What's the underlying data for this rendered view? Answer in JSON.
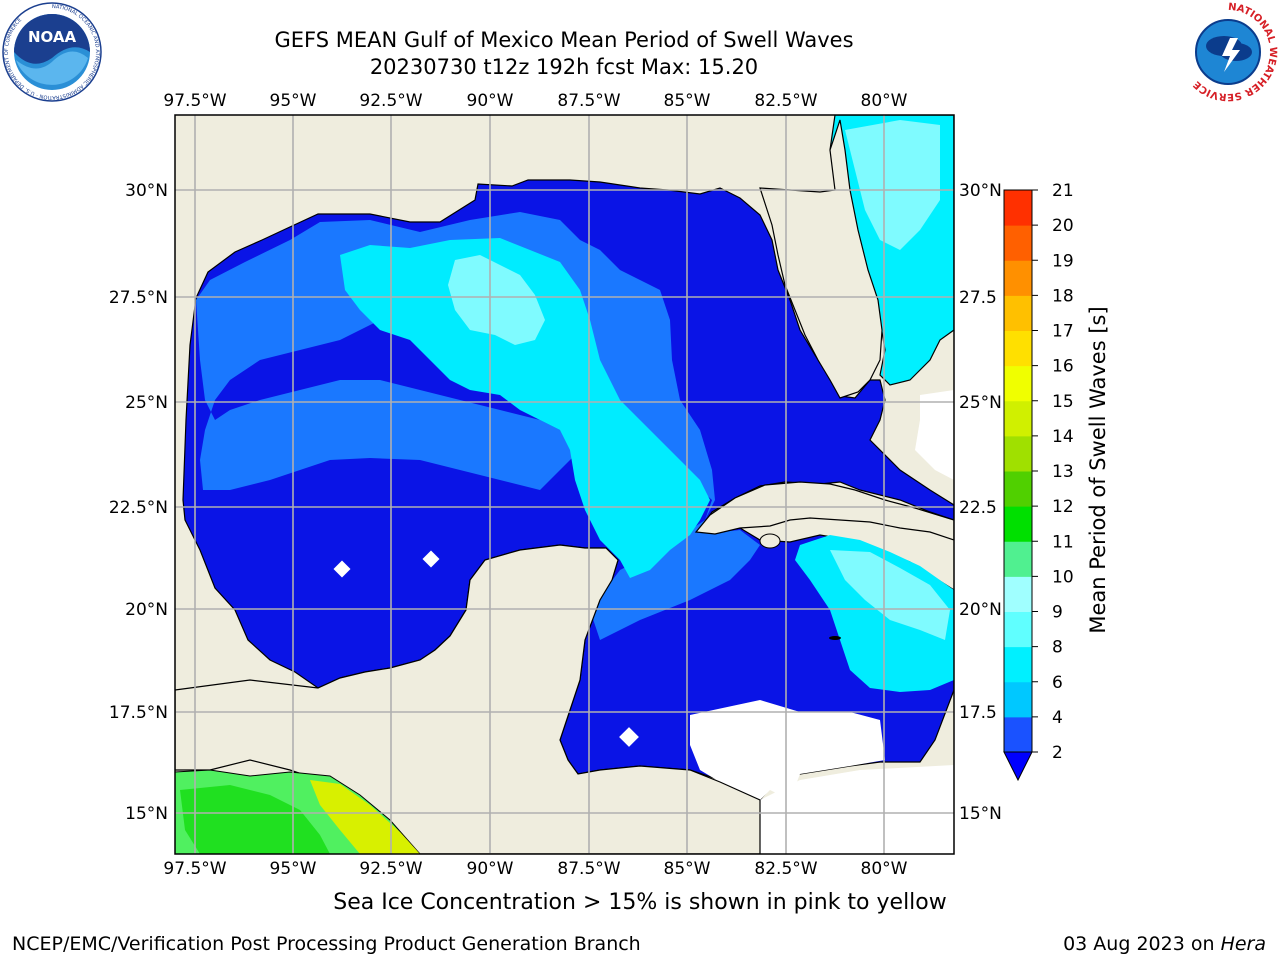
{
  "header": {
    "title_line1": "GEFS MEAN Gulf of Mexico Mean Period of Swell Waves",
    "title_line2": "20230730 t12z 192h fcst   Max: 15.20"
  },
  "logos": {
    "noaa": {
      "text": "NOAA",
      "ring_text": "NATIONAL OCEANIC AND ATMOSPHERIC ADMINISTRATION · U.S. DEPARTMENT OF COMMERCE"
    },
    "nws": {
      "ring_text": "NATIONAL WEATHER SERVICE"
    }
  },
  "map": {
    "lon_labels": [
      "97.5°W",
      "95°W",
      "92.5°W",
      "90°W",
      "87.5°W",
      "85°W",
      "82.5°W",
      "80°W"
    ],
    "lat_labels_left": [
      "30°N",
      "27.5°N",
      "25°N",
      "22.5°N",
      "20°N",
      "17.5°N",
      "15°N"
    ],
    "lat_labels_right": [
      "30°N",
      "27.5",
      "25°N",
      "22.5",
      "20°N",
      "17.5",
      "15°N"
    ],
    "land_color": "#efedde",
    "grid_color": "#b0b0b0"
  },
  "colorbar": {
    "label": "Mean Period of Swell Waves [s]",
    "ticks": [
      "2",
      "4",
      "6",
      "8",
      "9",
      "10",
      "11",
      "12",
      "13",
      "14",
      "15",
      "16",
      "17",
      "18",
      "19",
      "20",
      "21"
    ],
    "colors": [
      "#1a52ff",
      "#00c8ff",
      "#00f0ff",
      "#60ffff",
      "#a0ffff",
      "#50f090",
      "#00e000",
      "#50d000",
      "#a0e000",
      "#d0f000",
      "#f0ff00",
      "#ffe000",
      "#ffc000",
      "#ff9000",
      "#ff6000",
      "#ff3000",
      "#ff0000"
    ],
    "extend_color": "#0000ff"
  },
  "footer": {
    "subtitle": "Sea Ice Concentration > 15% is shown in pink to yellow",
    "credit": "NCEP/EMC/Verification Post Processing Product Generation Branch",
    "date": "03 Aug 2023 on",
    "host": "Hera"
  }
}
